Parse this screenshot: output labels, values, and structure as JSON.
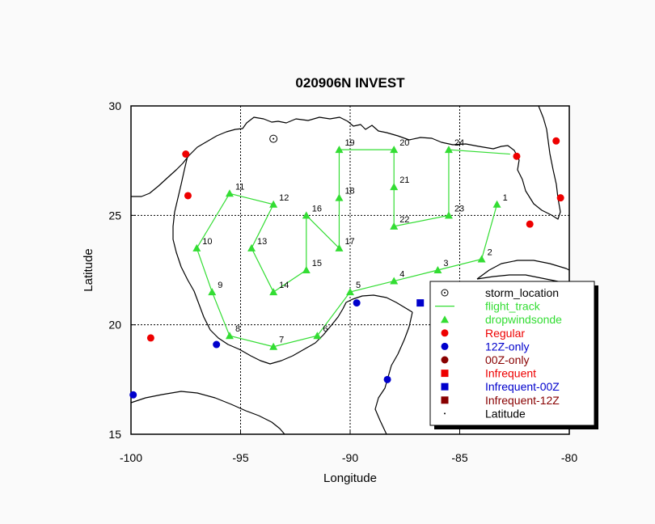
{
  "chart_data": {
    "type": "map",
    "title": "020906N INVEST",
    "xlabel": "Longitude",
    "ylabel": "Latitude",
    "xlim": [
      -100,
      -80
    ],
    "ylim": [
      15,
      30
    ],
    "x_ticks": [
      -100,
      -95,
      -90,
      -85,
      -80
    ],
    "y_ticks": [
      15,
      20,
      25,
      30
    ],
    "x_tick_labels": [
      "-100",
      "-95",
      "-90",
      "-85",
      "-80"
    ],
    "y_tick_labels": [
      "15",
      "20",
      "25",
      "30"
    ],
    "grid_lon": [
      -95,
      -90,
      -85
    ],
    "grid_lat": [
      20,
      25
    ],
    "storm_location": {
      "lon": -93.5,
      "lat": 28.5
    },
    "flight_track": [
      {
        "label": "1",
        "lon": -83.3,
        "lat": 25.5
      },
      {
        "label": "2",
        "lon": -84.0,
        "lat": 23.0
      },
      {
        "label": "3",
        "lon": -86.0,
        "lat": 22.5
      },
      {
        "label": "4",
        "lon": -88.0,
        "lat": 22.0
      },
      {
        "label": "5",
        "lon": -90.0,
        "lat": 21.5
      },
      {
        "label": "6",
        "lon": -91.5,
        "lat": 19.5
      },
      {
        "label": "7",
        "lon": -93.5,
        "lat": 19.0
      },
      {
        "label": "8",
        "lon": -95.5,
        "lat": 19.5
      },
      {
        "label": "9",
        "lon": -96.3,
        "lat": 21.5
      },
      {
        "label": "10",
        "lon": -97.0,
        "lat": 23.5
      },
      {
        "label": "11",
        "lon": -95.5,
        "lat": 26.0
      },
      {
        "label": "12",
        "lon": -93.5,
        "lat": 25.5
      },
      {
        "label": "13",
        "lon": -94.5,
        "lat": 23.5
      },
      {
        "label": "14",
        "lon": -93.5,
        "lat": 21.5
      },
      {
        "label": "15",
        "lon": -92.0,
        "lat": 22.5
      },
      {
        "label": "16",
        "lon": -92.0,
        "lat": 25.0
      },
      {
        "label": "17",
        "lon": -90.5,
        "lat": 23.5
      },
      {
        "label": "18",
        "lon": -90.5,
        "lat": 25.8
      },
      {
        "label": "19",
        "lon": -90.5,
        "lat": 28.0
      },
      {
        "label": "20",
        "lon": -88.0,
        "lat": 28.0
      },
      {
        "label": "21",
        "lon": -88.0,
        "lat": 26.3
      },
      {
        "label": "22",
        "lon": -88.0,
        "lat": 24.5
      },
      {
        "label": "23",
        "lon": -85.5,
        "lat": 25.0
      },
      {
        "label": "24",
        "lon": -85.5,
        "lat": 28.0
      }
    ],
    "track_end": {
      "lon": -82.7,
      "lat": 27.8
    },
    "regular_stations": [
      {
        "lon": -97.5,
        "lat": 27.8
      },
      {
        "lon": -97.4,
        "lat": 25.9
      },
      {
        "lon": -99.1,
        "lat": 19.4
      },
      {
        "lon": -82.4,
        "lat": 27.7
      },
      {
        "lon": -80.6,
        "lat": 28.4
      },
      {
        "lon": -80.4,
        "lat": 25.8
      },
      {
        "lon": -81.8,
        "lat": 24.6
      }
    ],
    "z12_only_stations": [
      {
        "lon": -96.1,
        "lat": 19.1
      },
      {
        "lon": -89.7,
        "lat": 21.0
      },
      {
        "lon": -88.3,
        "lat": 17.5
      },
      {
        "lon": -99.9,
        "lat": 16.8
      }
    ],
    "infrequent_00z_stations": [
      {
        "lon": -86.8,
        "lat": 21.0
      }
    ],
    "legend": {
      "placement": "bottom-right",
      "items": [
        {
          "key": "storm_location",
          "label": "storm_location",
          "color": "#000000",
          "symbol": "circle-open"
        },
        {
          "key": "flight_track",
          "label": "flight_track",
          "color": "#33dd33",
          "symbol": "line"
        },
        {
          "key": "dropwindsonde",
          "label": "dropwindsonde",
          "color": "#33dd33",
          "symbol": "triangle"
        },
        {
          "key": "regular",
          "label": "Regular",
          "color": "#ee0000",
          "symbol": "circle"
        },
        {
          "key": "z12_only",
          "label": "12Z-only",
          "color": "#0000cc",
          "symbol": "circle"
        },
        {
          "key": "z00_only",
          "label": "00Z-only",
          "color": "#880000",
          "symbol": "circle"
        },
        {
          "key": "infrequent",
          "label": "Infrequent",
          "color": "#ee0000",
          "symbol": "square"
        },
        {
          "key": "infrequent_00z",
          "label": "Infrequent-00Z",
          "color": "#0000cc",
          "symbol": "square"
        },
        {
          "key": "infrequent_12z",
          "label": "Infrequent-12Z",
          "color": "#880000",
          "symbol": "square"
        },
        {
          "key": "latitude",
          "label": "Latitude",
          "color": "#000000",
          "symbol": "dot"
        }
      ]
    }
  }
}
